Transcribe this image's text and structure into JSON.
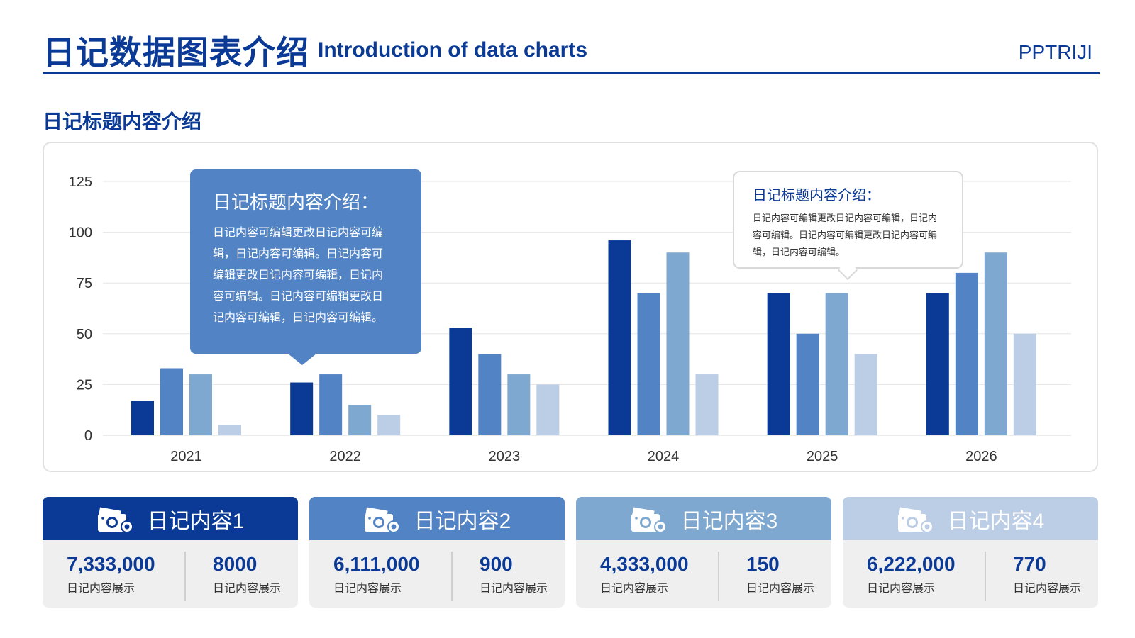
{
  "header": {
    "title": "日记数据图表介绍",
    "subtitle": "Introduction of data charts",
    "brand": "PPTRIJI"
  },
  "section_title": "日记标题内容介绍",
  "colors": {
    "series1": "#0a3a96",
    "series2": "#5283c5",
    "series3": "#7ea8cf",
    "series4": "#bccde6",
    "grid": "#e6e6e6",
    "axis": "#333333"
  },
  "callouts": [
    {
      "title": "日记标题内容介绍：",
      "lines": [
        "日记内容可编辑更改日记内容可编",
        "辑，日记内容可编辑。日记内容可",
        "编辑更改日记内容可编辑，日记内",
        "容可编辑。日记内容可编辑更改日",
        "记内容可编辑，日记内容可编辑。"
      ]
    },
    {
      "title": "日记标题内容介绍：",
      "lines": [
        "日记内容可编辑更改日记内容可编辑，日记内",
        "容可编辑。日记内容可编辑更改日记内容可编",
        "辑，日记内容可编辑。"
      ]
    }
  ],
  "chart_data": {
    "type": "bar",
    "categories": [
      "2021",
      "2022",
      "2023",
      "2024",
      "2025",
      "2026"
    ],
    "series": [
      {
        "values": [
          17,
          26,
          53,
          96,
          70,
          70
        ]
      },
      {
        "values": [
          33,
          30,
          40,
          70,
          50,
          80
        ]
      },
      {
        "values": [
          30,
          15,
          30,
          90,
          70,
          90
        ]
      },
      {
        "values": [
          5,
          10,
          25,
          30,
          40,
          50
        ]
      }
    ],
    "ylim": [
      0,
      125
    ],
    "yticks": [
      0,
      25,
      50,
      75,
      100,
      125
    ],
    "grid": true,
    "legend": "none"
  },
  "cards": [
    {
      "title": "日记内容1",
      "color": "#0a3a96",
      "stat1": {
        "value": "7,333,000",
        "label": "日记内容展示"
      },
      "stat2": {
        "value": "8000",
        "label": "日记内容展示"
      },
      "icon": "camera-icon"
    },
    {
      "title": "日记内容2",
      "color": "#5283c5",
      "stat1": {
        "value": "6,111,000",
        "label": "日记内容展示"
      },
      "stat2": {
        "value": "900",
        "label": "日记内容展示"
      },
      "icon": "camera-icon"
    },
    {
      "title": "日记内容3",
      "color": "#7ea8cf",
      "stat1": {
        "value": "4,333,000",
        "label": "日记内容展示"
      },
      "stat2": {
        "value": "150",
        "label": "日记内容展示"
      },
      "icon": "camera-icon"
    },
    {
      "title": "日记内容4",
      "color": "#bccde6",
      "stat1": {
        "value": "6,222,000",
        "label": "日记内容展示"
      },
      "stat2": {
        "value": "770",
        "label": "日记内容展示"
      },
      "icon": "camera-icon"
    }
  ]
}
